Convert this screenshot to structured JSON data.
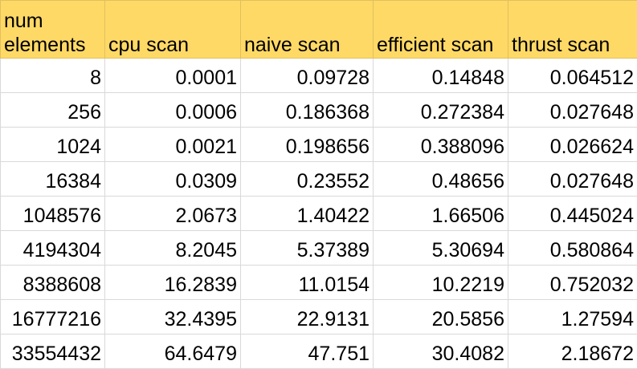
{
  "sheet": {
    "headers": [
      "num elements",
      "cpu scan",
      "naive scan",
      "efficient scan",
      "thrust scan"
    ],
    "rows": [
      [
        "8",
        "0.0001",
        "0.09728",
        "0.14848",
        "0.064512"
      ],
      [
        "256",
        "0.0006",
        "0.186368",
        "0.272384",
        "0.027648"
      ],
      [
        "1024",
        "0.0021",
        "0.198656",
        "0.388096",
        "0.026624"
      ],
      [
        "16384",
        "0.0309",
        "0.23552",
        "0.48656",
        "0.027648"
      ],
      [
        "1048576",
        "2.0673",
        "1.40422",
        "1.66506",
        "0.445024"
      ],
      [
        "4194304",
        "8.2045",
        "5.37389",
        "5.30694",
        "0.580864"
      ],
      [
        "8388608",
        "16.2839",
        "11.0154",
        "10.2219",
        "0.752032"
      ],
      [
        "16777216",
        "32.4395",
        "22.9131",
        "20.5856",
        "1.27594"
      ],
      [
        "33554432",
        "64.6479",
        "47.751",
        "30.4082",
        "2.18672"
      ]
    ],
    "colors": {
      "header_fill": "#ffd966",
      "grid_line": "#d9d9d9"
    }
  }
}
